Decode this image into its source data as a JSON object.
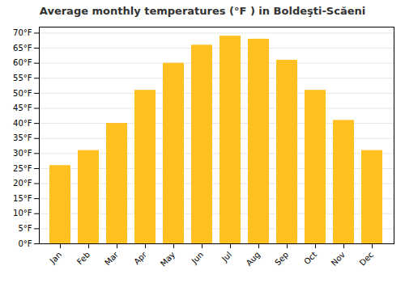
{
  "chart_data": {
    "type": "bar",
    "title": "Average monthly temperatures (°F ) in Boldeşti-Scăeni",
    "categories": [
      "Jan",
      "Feb",
      "Mar",
      "Apr",
      "May",
      "Jun",
      "Jul",
      "Aug",
      "Sep",
      "Oct",
      "Nov",
      "Dec"
    ],
    "values": [
      26,
      31,
      40,
      51,
      60,
      66,
      69,
      68,
      61,
      51,
      41,
      31
    ],
    "color": "#FFC020",
    "ylim": [
      0,
      72
    ],
    "yticks": [
      {
        "value": 0,
        "label": "0°F"
      },
      {
        "value": 5,
        "label": "5°F"
      },
      {
        "value": 10,
        "label": "10°F"
      },
      {
        "value": 15,
        "label": "15°F"
      },
      {
        "value": 20,
        "label": "20°F"
      },
      {
        "value": 25,
        "label": "25°F"
      },
      {
        "value": 30,
        "label": "30°F"
      },
      {
        "value": 35,
        "label": "35°F"
      },
      {
        "value": 40,
        "label": "40°F"
      },
      {
        "value": 45,
        "label": "45°F"
      },
      {
        "value": 50,
        "label": "50°F"
      },
      {
        "value": 55,
        "label": "55°F"
      },
      {
        "value": 60,
        "label": "60°F"
      },
      {
        "value": 65,
        "label": "65°F"
      },
      {
        "value": 70,
        "label": "70°F"
      }
    ],
    "grid": true
  }
}
